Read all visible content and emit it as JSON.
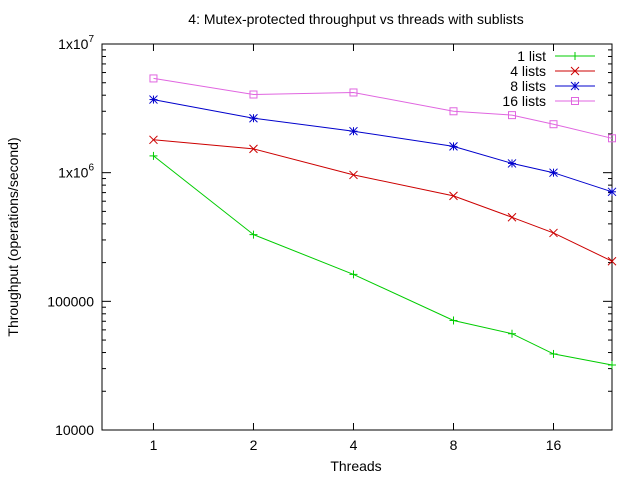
{
  "chart_data": {
    "type": "line",
    "title": "4: Mutex-protected throughput vs threads with sublists",
    "xlabel": "Threads",
    "ylabel": "Throughput (operations/second)",
    "x_scale": "log2",
    "y_scale": "log10",
    "xlim": [
      0.7,
      24
    ],
    "ylim": [
      10000,
      10000000
    ],
    "x_ticks": [
      1,
      2,
      4,
      8,
      16
    ],
    "x_tick_labels": [
      "1",
      "2",
      "4",
      "8",
      "16"
    ],
    "y_ticks": [
      10000,
      100000,
      1000000,
      10000000
    ],
    "y_tick_labels": [
      {
        "base": "10000",
        "exp": ""
      },
      {
        "base": "100000",
        "exp": ""
      },
      {
        "base": "1x10",
        "exp": "6"
      },
      {
        "base": "1x10",
        "exp": "7"
      }
    ],
    "grid": false,
    "legend_position": "top-right",
    "x": [
      1,
      2,
      4,
      8,
      12,
      16,
      24
    ],
    "series": [
      {
        "name": "1 list",
        "color": "#00cc00",
        "marker": "plus",
        "values": [
          1350000,
          330000,
          162000,
          71000,
          56000,
          39000,
          32000
        ]
      },
      {
        "name": "4 lists",
        "color": "#cc0000",
        "marker": "cross",
        "values": [
          1800000,
          1530000,
          960000,
          660000,
          450000,
          340000,
          205000
        ]
      },
      {
        "name": "8 lists",
        "color": "#0000cc",
        "marker": "star",
        "values": [
          3700000,
          2650000,
          2100000,
          1600000,
          1180000,
          1000000,
          710000
        ]
      },
      {
        "name": "16 lists",
        "color": "#e066e0",
        "marker": "box",
        "values": [
          5400000,
          4050000,
          4200000,
          3000000,
          2800000,
          2380000,
          1850000
        ]
      }
    ]
  }
}
